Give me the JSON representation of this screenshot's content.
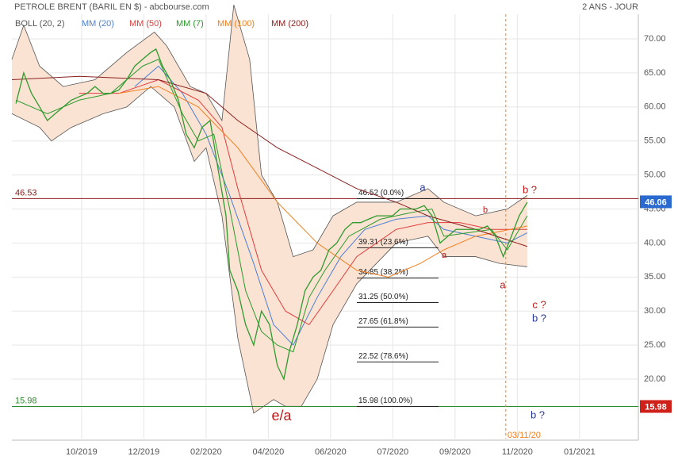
{
  "chart_data": {
    "type": "line",
    "title": "PETROLE BRENT (BARIL EN $) - abcbourse.com",
    "subtitle": "2 ANS - JOUR",
    "xlim": [
      -2.24,
      17.89
    ],
    "ylim": [
      11.26,
      74.55
    ],
    "grid": true,
    "xticks": [
      {
        "value": 0,
        "label": "10/2019"
      },
      {
        "value": 2,
        "label": "12/2019"
      },
      {
        "value": 4,
        "label": "02/2020"
      },
      {
        "value": 6,
        "label": "04/2020"
      },
      {
        "value": 8,
        "label": "06/2020"
      },
      {
        "value": 10,
        "label": "07/2020"
      },
      {
        "value": 12,
        "label": "09/2020"
      },
      {
        "value": 14,
        "label": "11/2020"
      },
      {
        "value": 16,
        "label": "01/2021"
      }
    ],
    "yticks": [
      {
        "value": 20,
        "label": "20.00"
      },
      {
        "value": 25,
        "label": "25.00"
      },
      {
        "value": 30,
        "label": "30.00"
      },
      {
        "value": 35,
        "label": "35.00"
      },
      {
        "value": 40,
        "label": "40.00"
      },
      {
        "value": 45,
        "label": "45.00"
      },
      {
        "value": 50,
        "label": "50.00"
      },
      {
        "value": 55,
        "label": "55.00"
      },
      {
        "value": 60,
        "label": "60.00"
      },
      {
        "value": 65,
        "label": "65.00"
      },
      {
        "value": 70,
        "label": "70.00"
      }
    ],
    "price": {
      "color": "#2e9a2e",
      "x": [
        -2.11,
        -1.86,
        -1.61,
        -1.35,
        -1.1,
        -0.85,
        -0.59,
        -0.33,
        -0.08,
        0.18,
        0.43,
        0.69,
        0.94,
        1.2,
        1.45,
        1.71,
        1.96,
        2.22,
        2.39,
        2.6,
        2.85,
        3.11,
        3.36,
        3.62,
        3.87,
        4.13,
        4.38,
        4.64,
        4.76,
        5.02,
        5.27,
        5.53,
        5.78,
        6.04,
        6.29,
        6.5,
        6.67,
        6.93,
        7.18,
        7.44,
        7.69,
        7.95,
        8.2,
        8.46,
        8.71,
        8.97,
        9.22,
        9.48,
        9.73,
        9.99,
        10.24,
        10.5,
        10.75,
        11.01,
        11.26,
        11.52,
        11.77,
        12.03,
        12.28,
        12.54,
        12.79,
        13.04,
        13.3,
        13.55,
        13.81,
        14.06,
        14.32
      ],
      "values": [
        60.5,
        65,
        62,
        60,
        58,
        59,
        60,
        61,
        61.5,
        62,
        63,
        62,
        62,
        62.5,
        64,
        66,
        67,
        68,
        68.5,
        66,
        64,
        61,
        56,
        54,
        57,
        58,
        51,
        44,
        36,
        33,
        28,
        25,
        30,
        28,
        22,
        20,
        24,
        28,
        33,
        35,
        36,
        39,
        40,
        42,
        43,
        43,
        43.5,
        44,
        44,
        44,
        45,
        45,
        45,
        45.5,
        44,
        40,
        41,
        42,
        42,
        42,
        42,
        42.5,
        41,
        38,
        41,
        44,
        46
      ]
    },
    "bands": {
      "name": "BOLL (20, 2)",
      "color": "#555555",
      "fill": "#fbe3d3",
      "upper": {
        "x": [
          -2.24,
          -1.86,
          -1.35,
          -0.59,
          0.43,
          1.45,
          2.34,
          2.73,
          3.49,
          4.0,
          4.51,
          4.89,
          5.4,
          5.78,
          6.29,
          6.8,
          7.44,
          8.08,
          8.84,
          10.11,
          11.13,
          11.64,
          12.66,
          13.68,
          14.32
        ],
        "values": [
          67,
          72,
          66,
          63,
          64,
          68,
          71,
          69,
          63,
          62,
          58,
          75,
          67,
          50,
          46,
          38,
          39,
          44,
          46,
          46,
          48,
          46,
          44,
          45,
          47
        ]
      },
      "lower": {
        "x": [
          -2.24,
          -1.35,
          -0.97,
          -0.33,
          0.69,
          1.45,
          2.22,
          2.98,
          3.62,
          4.0,
          4.51,
          5.02,
          5.53,
          6.17,
          6.55,
          7.06,
          7.57,
          8.08,
          8.84,
          10.11,
          11.13,
          11.64,
          12.66,
          13.43,
          14.32
        ],
        "values": [
          59,
          57,
          55,
          57,
          59,
          60,
          63,
          60,
          52,
          54,
          44,
          26,
          15,
          17,
          16,
          16,
          20,
          28,
          34,
          40,
          41,
          38,
          38,
          37,
          36.5
        ]
      }
    },
    "series": [
      {
        "name": "MM (20)",
        "color": "#4a7fd4",
        "x": [
          1.71,
          2.47,
          3.24,
          4.0,
          4.76,
          5.53,
          6.17,
          6.8,
          7.57,
          8.33,
          9.1,
          10.11,
          11.13,
          11.64,
          12.66,
          13.68,
          14.32
        ],
        "values": [
          63,
          66,
          62,
          56,
          47,
          37,
          28,
          25,
          32,
          38,
          42,
          43.5,
          44,
          42,
          41,
          40,
          41.5
        ]
      },
      {
        "name": "MM (50)",
        "color": "#e03c3c",
        "x": [
          -0.08,
          1.2,
          2.47,
          3.75,
          4.51,
          5.02,
          5.78,
          6.55,
          7.31,
          8.08,
          8.84,
          10.11,
          11.13,
          12.15,
          13.17,
          14.32
        ],
        "values": [
          62,
          62,
          64,
          61,
          57,
          48,
          36,
          30,
          28,
          33,
          38,
          42,
          43,
          43,
          42,
          42
        ]
      },
      {
        "name": "MM (7)",
        "color": "#2a9a2a",
        "x": [
          -2.11,
          -1.1,
          -0.08,
          0.94,
          1.96,
          2.47,
          3.24,
          3.75,
          4.25,
          4.76,
          5.27,
          5.78,
          6.29,
          6.8,
          7.31,
          7.82,
          8.59,
          9.6,
          10.62,
          11.26,
          11.64,
          12.41,
          13.17,
          13.68,
          14.32
        ],
        "values": [
          61,
          59,
          61,
          62,
          66,
          67,
          59,
          55,
          56,
          45,
          33,
          27,
          25,
          24,
          32,
          36,
          41,
          43.5,
          44.5,
          45,
          41,
          41.5,
          42,
          39,
          44
        ]
      },
      {
        "name": "MM (100)",
        "color": "#f08020",
        "x": [
          1.2,
          2.47,
          3.75,
          5.02,
          6.29,
          7.57,
          8.84,
          9.86,
          10.88,
          11.64,
          12.66,
          14.32
        ],
        "values": [
          62,
          63,
          60,
          54,
          46,
          40,
          36,
          35,
          37,
          39,
          41,
          42.5
        ]
      },
      {
        "name": "MM (200)",
        "color": "#8b2020",
        "x": [
          -2.24,
          -0.08,
          2.47,
          4.0,
          5.02,
          6.29,
          7.57,
          8.84,
          10.11,
          11.13,
          12.66,
          14.32
        ],
        "values": [
          64,
          64.5,
          64,
          62,
          58,
          54,
          51,
          48,
          46,
          44,
          42,
          39.5
        ]
      }
    ],
    "hlines": [
      {
        "value": 46.53,
        "color": "#8b1a1a"
      },
      {
        "value": 15.98,
        "color": "#2e8b2e"
      }
    ],
    "last_price": {
      "value": 46.06,
      "color": "#2a6ad0"
    },
    "fibonacci": [
      {
        "value": 46.52,
        "label": "46.52 (0.0%)"
      },
      {
        "value": 39.31,
        "label": "39.31 (23.6%)"
      },
      {
        "value": 34.85,
        "label": "34.85 (38.2%)"
      },
      {
        "value": 31.25,
        "label": "31.25 (50.0%)"
      },
      {
        "value": 27.65,
        "label": "27.65 (61.8%)"
      },
      {
        "value": 22.52,
        "label": "22.52 (78.6%)"
      },
      {
        "value": 15.98,
        "label": "15.98 (100.0%)"
      }
    ],
    "vline": {
      "value": 13.63,
      "label": "03/11/20",
      "color": "#f08020"
    },
    "annotations": [
      {
        "text": "a",
        "color": "#2a3a9a"
      },
      {
        "text": "e/a",
        "color": "#c01818"
      },
      {
        "text": "b ?",
        "color": "#c01818"
      },
      {
        "text": "b",
        "color": "#c01818"
      },
      {
        "text": "a",
        "color": "#c01818"
      },
      {
        "text": "a",
        "color": "#c01818"
      },
      {
        "text": "c ?",
        "color": "#c01818"
      },
      {
        "text": "b ?",
        "color": "#2a3a9a"
      },
      {
        "text": "b ?",
        "color": "#2a3a9a"
      }
    ]
  }
}
